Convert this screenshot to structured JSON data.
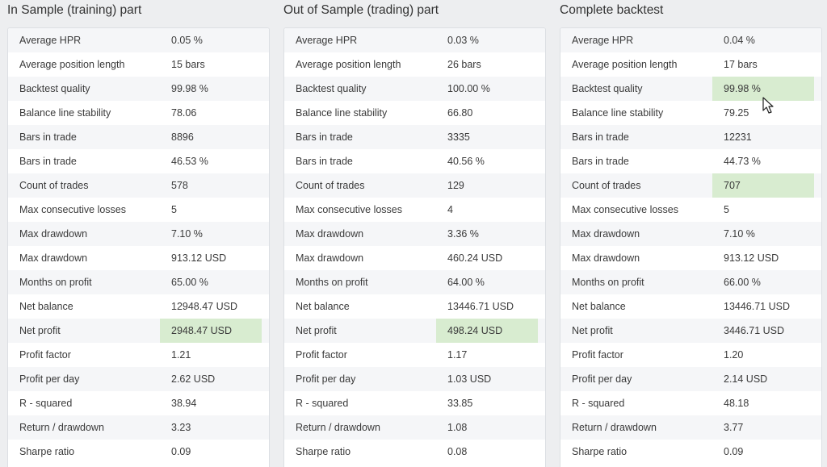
{
  "sections": [
    {
      "title": "In Sample (training) part",
      "rows": [
        {
          "label": "Average HPR",
          "value": "0.05 %"
        },
        {
          "label": "Average position length",
          "value": "15 bars"
        },
        {
          "label": "Backtest quality",
          "value": "99.98 %"
        },
        {
          "label": "Balance line stability",
          "value": "78.06"
        },
        {
          "label": "Bars in trade",
          "value": "8896"
        },
        {
          "label": "Bars in trade",
          "value": "46.53 %"
        },
        {
          "label": "Count of trades",
          "value": "578"
        },
        {
          "label": "Max consecutive losses",
          "value": "5"
        },
        {
          "label": "Max drawdown",
          "value": "7.10 %"
        },
        {
          "label": "Max drawdown",
          "value": "913.12 USD"
        },
        {
          "label": "Months on profit",
          "value": "65.00 %"
        },
        {
          "label": "Net balance",
          "value": "12948.47 USD"
        },
        {
          "label": "Net profit",
          "value": "2948.47 USD",
          "highlight": true
        },
        {
          "label": "Profit factor",
          "value": "1.21"
        },
        {
          "label": "Profit per day",
          "value": "2.62 USD"
        },
        {
          "label": "R - squared",
          "value": "38.94"
        },
        {
          "label": "Return / drawdown",
          "value": "3.23"
        },
        {
          "label": "Sharpe ratio",
          "value": "0.09"
        }
      ]
    },
    {
      "title": "Out of Sample (trading) part",
      "rows": [
        {
          "label": "Average HPR",
          "value": "0.03 %"
        },
        {
          "label": "Average position length",
          "value": "26 bars"
        },
        {
          "label": "Backtest quality",
          "value": "100.00 %"
        },
        {
          "label": "Balance line stability",
          "value": "66.80"
        },
        {
          "label": "Bars in trade",
          "value": "3335"
        },
        {
          "label": "Bars in trade",
          "value": "40.56 %"
        },
        {
          "label": "Count of trades",
          "value": "129"
        },
        {
          "label": "Max consecutive losses",
          "value": "4"
        },
        {
          "label": "Max drawdown",
          "value": "3.36 %"
        },
        {
          "label": "Max drawdown",
          "value": "460.24 USD"
        },
        {
          "label": "Months on profit",
          "value": "64.00 %"
        },
        {
          "label": "Net balance",
          "value": "13446.71 USD"
        },
        {
          "label": "Net profit",
          "value": "498.24 USD",
          "highlight": true
        },
        {
          "label": "Profit factor",
          "value": "1.17"
        },
        {
          "label": "Profit per day",
          "value": "1.03 USD"
        },
        {
          "label": "R - squared",
          "value": "33.85"
        },
        {
          "label": "Return / drawdown",
          "value": "1.08"
        },
        {
          "label": "Sharpe ratio",
          "value": "0.08"
        }
      ]
    },
    {
      "title": "Complete backtest",
      "rows": [
        {
          "label": "Average HPR",
          "value": "0.04 %"
        },
        {
          "label": "Average position length",
          "value": "17 bars"
        },
        {
          "label": "Backtest quality",
          "value": "99.98 %",
          "highlight": true
        },
        {
          "label": "Balance line stability",
          "value": "79.25"
        },
        {
          "label": "Bars in trade",
          "value": "12231"
        },
        {
          "label": "Bars in trade",
          "value": "44.73 %"
        },
        {
          "label": "Count of trades",
          "value": "707",
          "highlight": true
        },
        {
          "label": "Max consecutive losses",
          "value": "5"
        },
        {
          "label": "Max drawdown",
          "value": "7.10 %"
        },
        {
          "label": "Max drawdown",
          "value": "913.12 USD"
        },
        {
          "label": "Months on profit",
          "value": "66.00 %"
        },
        {
          "label": "Net balance",
          "value": "13446.71 USD"
        },
        {
          "label": "Net profit",
          "value": "3446.71 USD"
        },
        {
          "label": "Profit factor",
          "value": "1.20"
        },
        {
          "label": "Profit per day",
          "value": "2.14 USD"
        },
        {
          "label": "R - squared",
          "value": "48.18"
        },
        {
          "label": "Return / drawdown",
          "value": "3.77"
        },
        {
          "label": "Sharpe ratio",
          "value": "0.09"
        }
      ]
    }
  ],
  "colors": {
    "highlight": "#d8ecd0",
    "row_alt": "#f5f6f8",
    "background": "#edeef0"
  },
  "cursor_icon": "mouse-pointer-icon"
}
